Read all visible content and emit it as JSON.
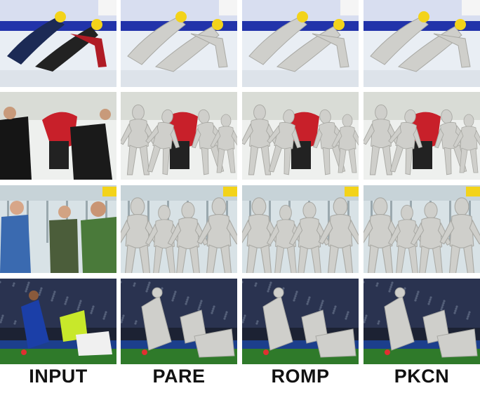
{
  "columns": [
    {
      "label": "INPUT"
    },
    {
      "label": "PARE"
    },
    {
      "label": "ROMP"
    },
    {
      "label": "PKCN"
    }
  ],
  "rows": [
    {
      "scene": "speed-skating"
    },
    {
      "scene": "film-crew"
    },
    {
      "scene": "tram-passengers"
    },
    {
      "scene": "football-match"
    }
  ],
  "colors": {
    "mesh": "#cfcfcb",
    "mesh_shade": "#a9a9a4",
    "helmet": "#f3d31a",
    "pitch": "#2f7a2a",
    "rink": "#e9eef4",
    "banner": "#2233aa"
  }
}
